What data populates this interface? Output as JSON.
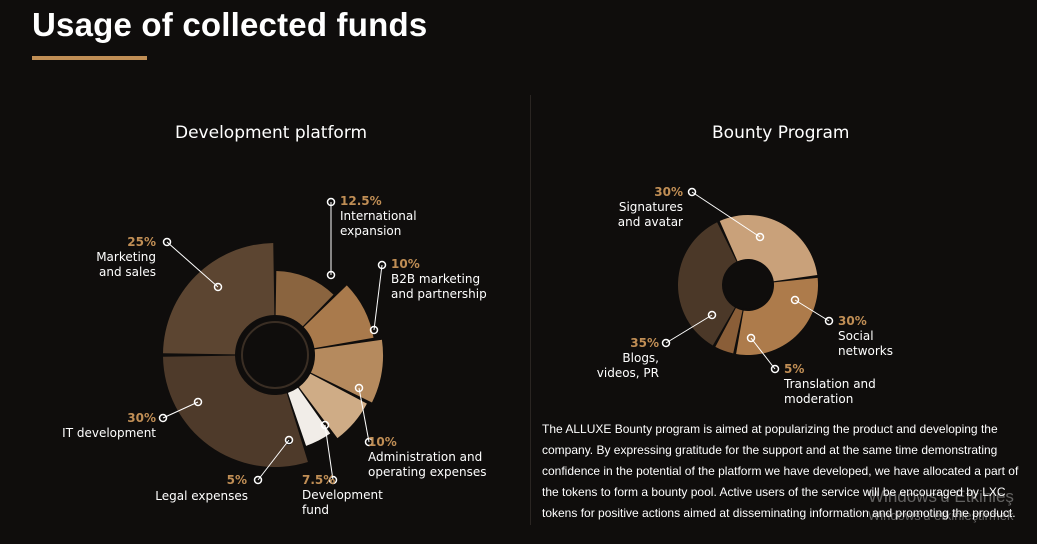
{
  "page": {
    "title": "Usage of collected funds"
  },
  "chart_data": [
    {
      "type": "pie",
      "title": "Development platform",
      "slices": [
        {
          "name": "International expansion",
          "pct_label": "12.5%",
          "value": 12.5,
          "color": "#8a643f"
        },
        {
          "name": "B2B marketing and partnership",
          "pct_label": "10%",
          "value": 10,
          "color": "#a97a4c"
        },
        {
          "name": "Administration and operating expenses",
          "pct_label": "10%",
          "value": 10,
          "color": "#b58a5e"
        },
        {
          "name": "Development fund",
          "pct_label": "7.5%",
          "value": 7.5,
          "color": "#cfac86"
        },
        {
          "name": "Legal expenses",
          "pct_label": "5%",
          "value": 5,
          "color": "#f1ede8"
        },
        {
          "name": "IT development",
          "pct_label": "30%",
          "value": 30,
          "color": "#4e3a2a"
        },
        {
          "name": "Marketing and sales",
          "pct_label": "25%",
          "value": 25,
          "color": "#5c4531"
        }
      ]
    },
    {
      "type": "pie",
      "title": "Bounty Program",
      "slices": [
        {
          "name": "Signatures and avatar",
          "pct_label": "30%",
          "value": 30,
          "color": "#c9a17a"
        },
        {
          "name": "Social networks",
          "pct_label": "30%",
          "value": 30,
          "color": "#ad7b4b"
        },
        {
          "name": "Translation and moderation",
          "pct_label": "5%",
          "value": 5,
          "color": "#8a5e38"
        },
        {
          "name": "Blogs, videos, PR",
          "pct_label": "35%",
          "value": 35,
          "color": "#4b3828"
        }
      ]
    }
  ],
  "labels": {
    "left": [
      {
        "pct": "12.5%",
        "lines": [
          "International",
          "expansion"
        ]
      },
      {
        "pct": "10%",
        "lines": [
          "B2B marketing",
          "and partnership"
        ]
      },
      {
        "pct": "10%",
        "lines": [
          "Administration and",
          "operating expenses"
        ]
      },
      {
        "pct": "7.5%",
        "lines": [
          "Development",
          "fund"
        ]
      },
      {
        "pct": "5%",
        "lines": [
          "Legal expenses"
        ]
      },
      {
        "pct": "30%",
        "lines": [
          "IT development"
        ]
      },
      {
        "pct": "25%",
        "lines": [
          "Marketing",
          "and sales"
        ]
      }
    ],
    "right": [
      {
        "pct": "30%",
        "lines": [
          "Signatures",
          "and avatar"
        ]
      },
      {
        "pct": "30%",
        "lines": [
          "Social",
          "networks"
        ]
      },
      {
        "pct": "5%",
        "lines": [
          "Translation and",
          "moderation"
        ]
      },
      {
        "pct": "35%",
        "lines": [
          "Blogs,",
          "videos, PR"
        ]
      }
    ]
  },
  "bounty_description": "The ALLUXE Bounty program is aimed at popularizing the product and developing the company. By expressing gratitude for the support and at the same time demonstrating confidence in the potential of the platform we have developed, we have allocated a part of the tokens to form a bounty pool. Active users of the service will be encouraged by LXC tokens for positive actions aimed at disseminating information and promoting the product.",
  "watermark": {
    "line1": "Windows'u Etkinleş",
    "line2": "Windows'u etkinleştirmek"
  }
}
